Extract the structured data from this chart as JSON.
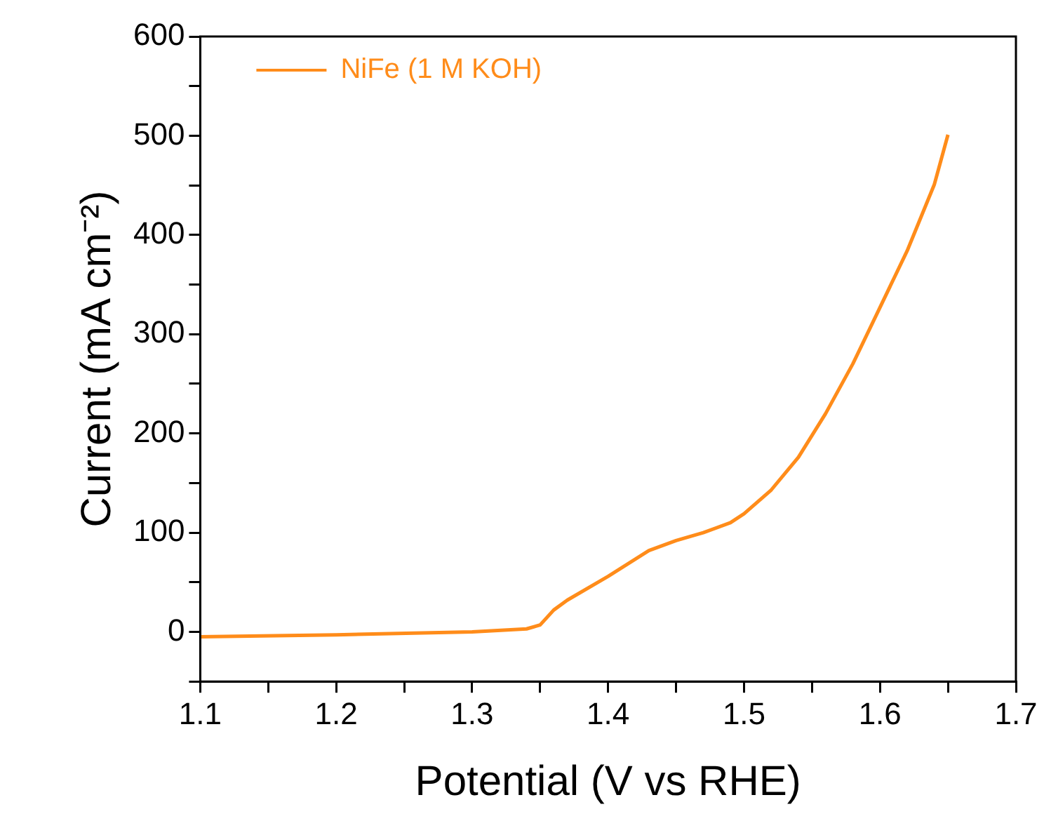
{
  "chart_data": {
    "type": "line",
    "xlabel": "Potential (V vs RHE)",
    "ylabel": "Current (mA cm⁻²)",
    "xlim": [
      1.1,
      1.7
    ],
    "ylim": [
      -50,
      600
    ],
    "xticks": [
      1.1,
      {
        "value": 1.15,
        "label": null
      },
      1.2,
      {
        "value": 1.25,
        "label": null
      },
      1.3,
      {
        "value": 1.35,
        "label": null
      },
      1.4,
      {
        "value": 1.45,
        "label": null
      },
      1.5,
      {
        "value": 1.55,
        "label": null
      },
      1.6,
      {
        "value": 1.65,
        "label": null
      },
      1.7
    ],
    "yticks": [
      {
        "value": -50,
        "label": null
      },
      0,
      {
        "value": 50,
        "label": null
      },
      100,
      {
        "value": 150,
        "label": null
      },
      200,
      {
        "value": 250,
        "label": null
      },
      300,
      {
        "value": 350,
        "label": null
      },
      400,
      {
        "value": 450,
        "label": null
      },
      500,
      {
        "value": 550,
        "label": null
      },
      600
    ],
    "grid": false,
    "legend": "top left",
    "marker": "none",
    "line_style": "solid",
    "series": [
      {
        "name": "NiFe (1 M KOH)",
        "color": "#ff8c1a",
        "x": [
          1.1,
          1.2,
          1.3,
          1.34,
          1.35,
          1.36,
          1.37,
          1.4,
          1.43,
          1.45,
          1.47,
          1.49,
          1.5,
          1.52,
          1.54,
          1.56,
          1.58,
          1.6,
          1.62,
          1.64,
          1.65
        ],
        "values": [
          -5,
          -3,
          0,
          3,
          7,
          22,
          32,
          56,
          82,
          92,
          100,
          110,
          119,
          143,
          176,
          220,
          270,
          327,
          384,
          451,
          501
        ]
      }
    ]
  }
}
